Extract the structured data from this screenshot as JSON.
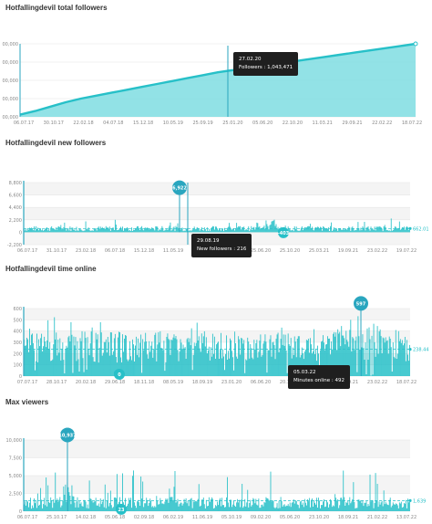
{
  "colors": {
    "accent": "#27c0c8",
    "accent_fill": "#7fdde2",
    "dark": "#1f1f1f",
    "marker": "#2aa6bf"
  },
  "chart_data": [
    {
      "id": "total_followers",
      "type": "area",
      "title": "Hotfallingdevil total followers",
      "x_ticks": [
        "06.07.17",
        "30.10.17",
        "22.02.18",
        "04.07.18",
        "15.12.18",
        "10.05.19",
        "25.09.19",
        "25.01.20",
        "05.06.20",
        "22.10.20",
        "11.03.21",
        "29.09.21",
        "22.02.22",
        "18.07.22"
      ],
      "y_ticks": [
        "00,000",
        "00,000",
        "00,000",
        "00,000",
        "00,000"
      ],
      "ylim": [
        0,
        1
      ],
      "series": [
        {
          "values": [
            0.03,
            0.08,
            0.14,
            0.2,
            0.25,
            0.29,
            0.33,
            0.37,
            0.41,
            0.45,
            0.49,
            0.53,
            0.57,
            0.61,
            0.64,
            0.67,
            0.7,
            0.73,
            0.76,
            0.79,
            0.82,
            0.85,
            0.88,
            0.91,
            0.94,
            0.97,
            1.0
          ]
        }
      ],
      "tooltip": {
        "date": "27.02.20",
        "label": "Followers",
        "value": "1,043,471"
      }
    },
    {
      "id": "new_followers",
      "type": "bar",
      "title": "Hotfallingdevil new followers",
      "x_ticks": [
        "06.07.17",
        "31.10.17",
        "23.02.18",
        "06.07.18",
        "15.12.18",
        "11.05.19",
        "26.09.19",
        "26.01.20",
        "25.06.20",
        "25.10.20",
        "25.03.21",
        "19.09.21",
        "23.02.22",
        "19.07.22"
      ],
      "y_ticks": [
        "8,800",
        "6,600",
        "4,400",
        "2,200",
        "0",
        "-2,200"
      ],
      "ylim": [
        -2200,
        8800
      ],
      "average": {
        "label": "662.01",
        "value": 662
      },
      "peak": {
        "label": "6,922",
        "value": 6922
      },
      "low": {
        "label": "-403",
        "value": -403
      },
      "tooltip": {
        "date": "29.08.19",
        "label": "New followers",
        "value": "216"
      }
    },
    {
      "id": "time_online",
      "type": "bar",
      "title": "Hotfallingdevil time online",
      "x_ticks": [
        "07.07.17",
        "28.10.17",
        "20.02.18",
        "29.06.18",
        "18.11.18",
        "08.05.19",
        "18.09.19",
        "23.01.20",
        "06.06.20",
        "20.10.20",
        "02.03.21",
        "18.09.21",
        "23.02.22",
        "18.07.22"
      ],
      "y_ticks": [
        "600",
        "500",
        "400",
        "300",
        "200",
        "100",
        "0"
      ],
      "ylim": [
        0,
        600
      ],
      "average": {
        "label": "238.44",
        "value": 238
      },
      "peak": {
        "label": "597",
        "value": 597
      },
      "low": {
        "label": "0",
        "value": 0
      },
      "tooltip": {
        "date": "05.03.22",
        "label": "Minutes online",
        "value": "492"
      }
    },
    {
      "id": "max_viewers",
      "type": "bar",
      "title": "Max viewers",
      "x_ticks": [
        "06.07.17",
        "25.10.17",
        "14.02.18",
        "05.06.18",
        "02.09.18",
        "06.02.19",
        "11.06.19",
        "05.10.19",
        "09.02.20",
        "05.06.20",
        "23.10.20",
        "18.09.21",
        "21.02.22",
        "13.07.22"
      ],
      "y_ticks": [
        "10,000",
        "7,500",
        "5,000",
        "2,500",
        "0"
      ],
      "ylim": [
        0,
        11000
      ],
      "average": {
        "label": "1,639",
        "value": 1639
      },
      "peak": {
        "label": "10,937",
        "value": 10937
      },
      "low": {
        "label": "23",
        "value": 23
      }
    }
  ]
}
